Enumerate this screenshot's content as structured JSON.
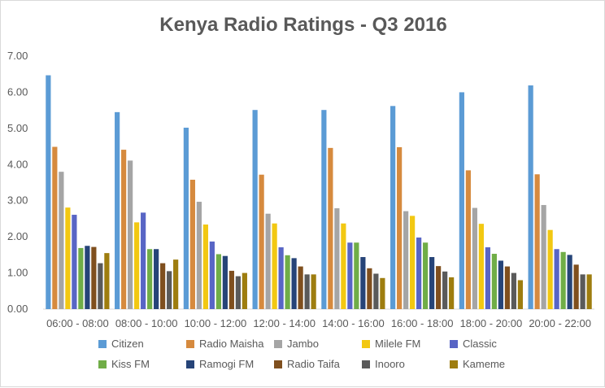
{
  "chart_data": {
    "type": "bar",
    "title": "Kenya Radio Ratings - Q3 2016",
    "xlabel": "",
    "ylabel": "",
    "ylim": [
      0,
      7
    ],
    "yticks": [
      "0.00",
      "1.00",
      "2.00",
      "3.00",
      "4.00",
      "5.00",
      "6.00",
      "7.00"
    ],
    "grid": false,
    "legend_position": "bottom",
    "categories": [
      "06:00 - 08:00",
      "08:00 - 10:00",
      "10:00 - 12:00",
      "12:00 - 14:00",
      "14:00 - 16:00",
      "16:00 - 18:00",
      "18:00 - 20:00",
      "20:00 - 22:00"
    ],
    "series": [
      {
        "name": "Citizen",
        "color": "#5b9bd5",
        "values": [
          6.47,
          5.45,
          5.02,
          5.51,
          5.51,
          5.62,
          6.0,
          6.19
        ]
      },
      {
        "name": "Radio Maisha",
        "color": "#d68a3e",
        "values": [
          4.49,
          4.41,
          3.58,
          3.72,
          4.46,
          4.48,
          3.84,
          3.73
        ]
      },
      {
        "name": "Jambo",
        "color": "#a5a5a5",
        "values": [
          3.8,
          4.11,
          2.97,
          2.64,
          2.79,
          2.71,
          2.8,
          2.88
        ]
      },
      {
        "name": "Milele FM",
        "color": "#f2c812",
        "values": [
          2.81,
          2.4,
          2.34,
          2.37,
          2.37,
          2.58,
          2.36,
          2.19
        ]
      },
      {
        "name": "Classic",
        "color": "#5865c5",
        "values": [
          2.61,
          2.67,
          1.87,
          1.71,
          1.84,
          1.98,
          1.71,
          1.66
        ]
      },
      {
        "name": "Kiss FM",
        "color": "#70ad47",
        "values": [
          1.69,
          1.66,
          1.52,
          1.49,
          1.84,
          1.84,
          1.53,
          1.58
        ]
      },
      {
        "name": "Ramogi FM",
        "color": "#264478",
        "values": [
          1.75,
          1.66,
          1.47,
          1.41,
          1.44,
          1.44,
          1.34,
          1.5
        ]
      },
      {
        "name": "Radio Taifa",
        "color": "#7f4f1e",
        "values": [
          1.72,
          1.27,
          1.06,
          1.18,
          1.13,
          1.19,
          1.18,
          1.23
        ]
      },
      {
        "name": "Inooro",
        "color": "#5a5a5a",
        "values": [
          1.27,
          1.05,
          0.91,
          0.96,
          0.98,
          1.04,
          1.0,
          0.96
        ]
      },
      {
        "name": "Kameme",
        "color": "#9e7d0f",
        "values": [
          1.55,
          1.37,
          1.0,
          0.96,
          0.86,
          0.88,
          0.8,
          0.96
        ]
      }
    ]
  }
}
